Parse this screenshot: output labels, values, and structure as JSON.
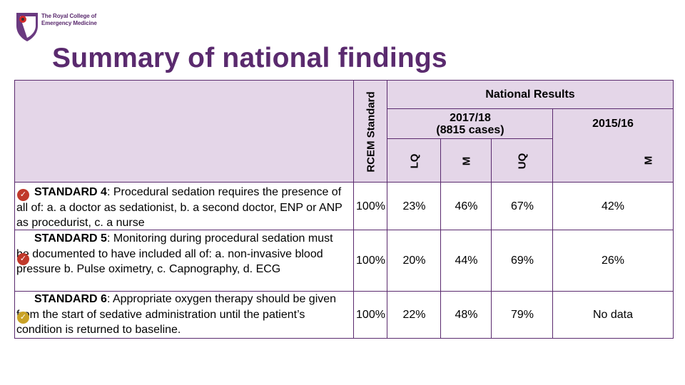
{
  "logo": {
    "line1": "The Royal College of",
    "line2": "Emergency Medicine"
  },
  "title": "Summary of national findings",
  "colors": {
    "brand": "#5a2a6e",
    "header_bg": "#e4d6e8",
    "check_red": "#c0392b",
    "check_yellow": "#c9a227"
  },
  "table": {
    "rcem_standard": "RCEM Standard",
    "national_results": "National Results",
    "period_current_line1": "2017/18",
    "period_current_line2": "(8815 cases)",
    "period_previous": "2015/16",
    "col_lq": "LQ",
    "col_m": "M",
    "col_uq": "UQ",
    "col_m_prev": "M",
    "rows": [
      {
        "label": "STANDARD 4",
        "text": ": Procedural sedation requires the presence of all of: a. a doctor as sedationist, b. a second doctor, ENP or ANP as procedurist, c. a nurse",
        "standard": "100%",
        "lq": "23%",
        "m": "46%",
        "uq": "67%",
        "prev": "42%",
        "status_icon": "check-icon"
      },
      {
        "label": "STANDARD 5",
        "text": ": Monitoring during procedural sedation must be documented to have included all of: a. non-invasive blood pressure b. Pulse oximetry, c. Capnography, d. ECG",
        "standard": "100%",
        "lq": "20%",
        "m": "44%",
        "uq": "69%",
        "prev": "26%",
        "status_icon": "check-icon"
      },
      {
        "label": "STANDARD 6",
        "text": ": Appropriate oxygen therapy should be given from the start of sedative administration until the patient’s condition is returned to baseline.",
        "standard": "100%",
        "lq": "22%",
        "m": "48%",
        "uq": "79%",
        "prev": "No data",
        "status_icon": "check-icon"
      }
    ]
  }
}
